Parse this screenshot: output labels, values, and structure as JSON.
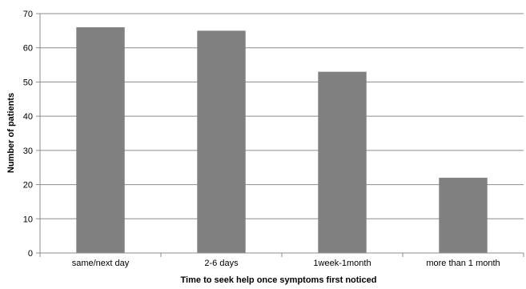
{
  "chart_data": {
    "type": "bar",
    "title": "",
    "xlabel": "Time to seek help once symptoms first noticed",
    "ylabel": "Number of patients",
    "categories": [
      "same/next day",
      "2-6 days",
      "1week-1month",
      "more than 1 month"
    ],
    "values": [
      66,
      65,
      53,
      22
    ],
    "ylim": [
      0,
      70
    ],
    "yticks": [
      0,
      10,
      20,
      30,
      40,
      50,
      60,
      70
    ],
    "grid": true,
    "legend": "none",
    "colors": {
      "bar": "#808080",
      "grid": "#8c8c8c",
      "axis": "#8c8c8c"
    }
  }
}
